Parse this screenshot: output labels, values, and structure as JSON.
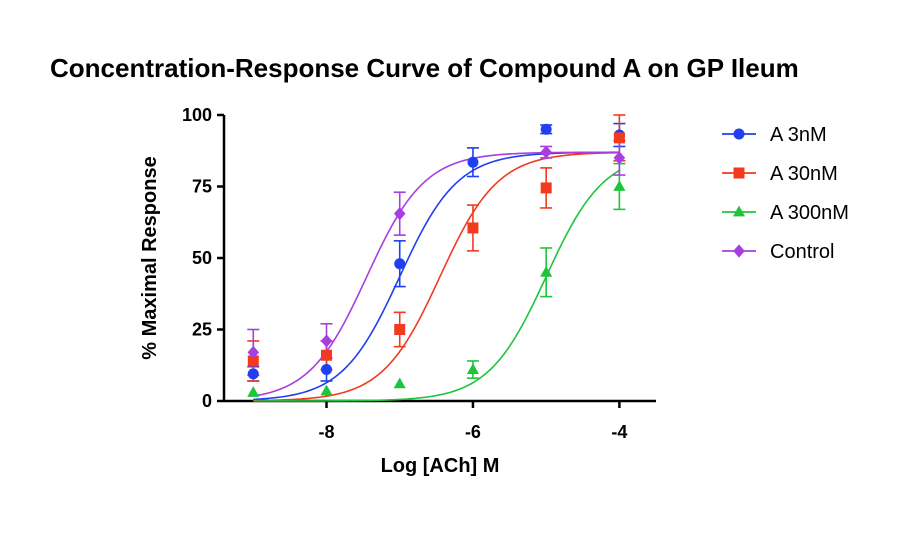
{
  "chart_data": {
    "type": "scatter",
    "title": "Concentration-Response Curve of Compound A on GP Ileum",
    "xlabel": "Log  [ACh] M",
    "ylabel": "% Maximal Response",
    "xlim": [
      -9.4,
      -3.5
    ],
    "ylim": [
      0,
      100
    ],
    "xticks": [
      -8,
      -6,
      -4
    ],
    "yticks": [
      0,
      25,
      50,
      75,
      100
    ],
    "legend_position": "right",
    "series": [
      {
        "name": "A 3nM",
        "color": "#1f3ff0",
        "marker": "circle",
        "x": [
          -9,
          -8,
          -7,
          -6,
          -5,
          -4
        ],
        "y": [
          9.5,
          11,
          48,
          83.5,
          95,
          93
        ],
        "err": [
          2.5,
          4,
          8,
          5,
          1.5,
          4
        ],
        "fit": {
          "bottom": 0,
          "top": 87,
          "log_ec50": -7.0,
          "hill": 1.1
        }
      },
      {
        "name": "A 30nM",
        "color": "#f23a1e",
        "marker": "square",
        "x": [
          -9,
          -8,
          -7,
          -6,
          -5,
          -4
        ],
        "y": [
          14,
          16,
          25,
          60.5,
          74.5,
          92
        ],
        "err": [
          7,
          5,
          6,
          8,
          7,
          8
        ],
        "fit": {
          "bottom": 0,
          "top": 87,
          "log_ec50": -6.45,
          "hill": 1.1
        }
      },
      {
        "name": "A 300nM",
        "color": "#1ec43c",
        "marker": "triangle",
        "x": [
          -9,
          -8,
          -7,
          -6,
          -5,
          -4
        ],
        "y": [
          3,
          3.5,
          6,
          11,
          45,
          75
        ],
        "err": [
          0,
          0,
          0,
          3,
          8.5,
          8
        ],
        "fit": {
          "bottom": 0,
          "top": 87,
          "log_ec50": -5.0,
          "hill": 1.1
        }
      },
      {
        "name": "Control",
        "color": "#a63ee0",
        "marker": "diamond",
        "x": [
          -9,
          -8,
          -7,
          -5,
          -4
        ],
        "y": [
          17,
          21,
          65.5,
          87,
          85
        ],
        "err": [
          8,
          6,
          7.5,
          2,
          6
        ],
        "fit": {
          "bottom": 0,
          "top": 87,
          "log_ec50": -7.45,
          "hill": 1.1
        }
      }
    ]
  }
}
